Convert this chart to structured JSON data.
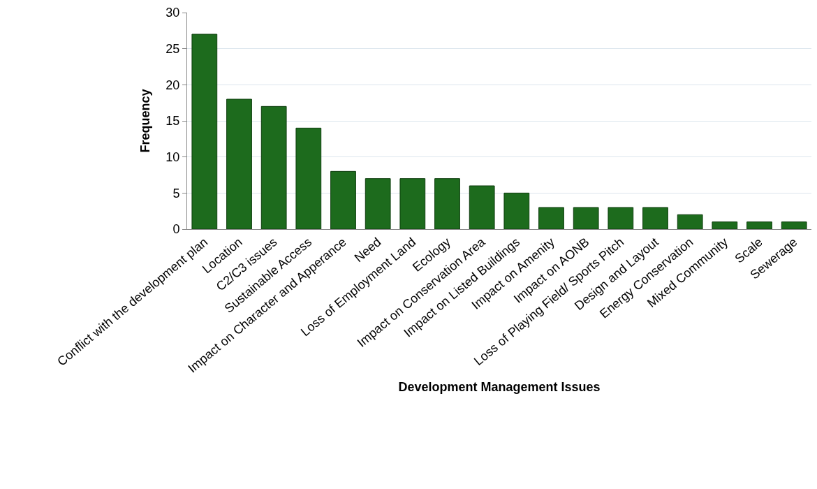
{
  "chart_data": {
    "type": "bar",
    "xlabel": "Development Management Issues",
    "ylabel": "Frequency",
    "categories": [
      "Conflict with the development plan",
      "Location",
      "C2/C3 issues",
      "Sustainable Access",
      "Impact on Character and Apperance",
      "Need",
      "Loss of Employment Land",
      "Ecology",
      "Impact on Conservation Area",
      "Impact on Listed Buildings",
      "Impact on Amenity",
      "Impact on AONB",
      "Loss of Playing Field/ Sports Pitch",
      "Design and Layout",
      "Energy Conservation",
      "Mixed Community",
      "Scale",
      "Sewerage"
    ],
    "values": [
      27,
      18,
      17,
      14,
      8,
      7,
      7,
      7,
      6,
      5,
      3,
      3,
      3,
      3,
      2,
      1,
      1,
      1
    ],
    "color": "#1d6b1d",
    "ylim": [
      0,
      30
    ],
    "yticks": [
      0,
      5,
      10,
      15,
      20,
      25,
      30
    ],
    "grid": "y"
  }
}
